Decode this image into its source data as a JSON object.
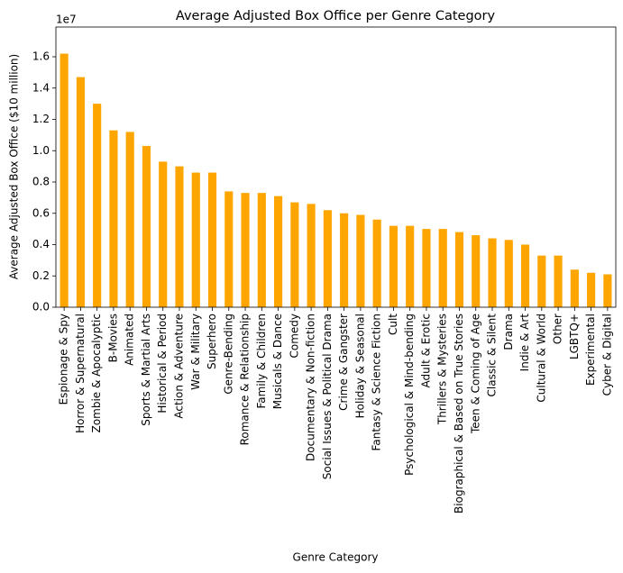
{
  "chart_data": {
    "type": "bar",
    "title": "Average Adjusted Box Office per Genre Category",
    "x_label": "Genre Category",
    "y_label": "Average Adjusted Box Office ($10 million)",
    "y_offset_label": "1e7",
    "color": "#ffa500",
    "categories": [
      "Espionage & Spy",
      "Horror & Supernatural",
      "Zombie & Apocalyptic",
      "B-Movies",
      "Animated",
      "Sports & Martial Arts",
      "Historical & Period",
      "Action & Adventure",
      "War & Military",
      "Superhero",
      "Genre-Bending",
      "Romance & Relationship",
      "Family & Children",
      "Musicals & Dance",
      "Comedy",
      "Documentary & Non-fiction",
      "Social Issues & Political Drama",
      "Crime & Gangster",
      "Holiday & Seasonal",
      "Fantasy & Science Fiction",
      "Cult",
      "Psychological & Mind-bending",
      "Adult & Erotic",
      "Thrillers & Mysteries",
      "Biographical & Based on True Stories",
      "Teen & Coming of Age",
      "Classic & Silent",
      "Drama",
      "Indie & Art",
      "Cultural & World",
      "Other",
      "LGBTQ+",
      "Experimental",
      "Cyber & Digital"
    ],
    "values": [
      1.62,
      1.47,
      1.3,
      1.13,
      1.12,
      1.03,
      0.93,
      0.9,
      0.86,
      0.86,
      0.74,
      0.73,
      0.73,
      0.71,
      0.67,
      0.66,
      0.62,
      0.6,
      0.59,
      0.56,
      0.52,
      0.52,
      0.5,
      0.5,
      0.48,
      0.46,
      0.44,
      0.43,
      0.4,
      0.33,
      0.33,
      0.24,
      0.22,
      0.21
    ],
    "ylim": [
      0,
      1.79
    ],
    "yticks": [
      {
        "value": 0,
        "label": "0.0"
      },
      0.2,
      0.4,
      0.6,
      0.8,
      {
        "value": 1,
        "label": "1.0"
      },
      1.2,
      1.4,
      1.6
    ]
  }
}
